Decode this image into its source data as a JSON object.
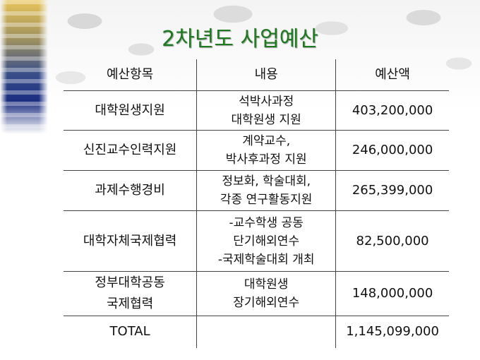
{
  "title": "2차년도 사업예산",
  "table": {
    "headers": [
      "예산항목",
      "내용",
      "예산액"
    ],
    "rows": [
      {
        "item": "대학원생지원",
        "content": [
          "석박사과정",
          "대학원생 지원"
        ],
        "amount": "403,200,000"
      },
      {
        "item": "신진교수인력지원",
        "content": [
          "계약교수,",
          "박사후과정 지원"
        ],
        "amount": "246,000,000"
      },
      {
        "item": "과제수행경비",
        "content": [
          "정보화, 학술대회,",
          "각종 연구활동지원"
        ],
        "amount": "265,399,000"
      },
      {
        "item": "대학자체국제협력",
        "content": [
          "-교수학생 공동",
          "단기해외연수",
          "-국제학술대회 개최"
        ],
        "amount": "82,500,000"
      },
      {
        "item": "정부대학공동\n국제협력",
        "item_lines": [
          "정부대학공동",
          "국제협력"
        ],
        "content": [
          "대학원생",
          "장기해외연수"
        ],
        "amount": "148,000,000"
      }
    ],
    "total": {
      "label": "TOTAL",
      "amount": "1,145,099,000"
    }
  },
  "colors": {
    "title": "#1e7a1e"
  }
}
